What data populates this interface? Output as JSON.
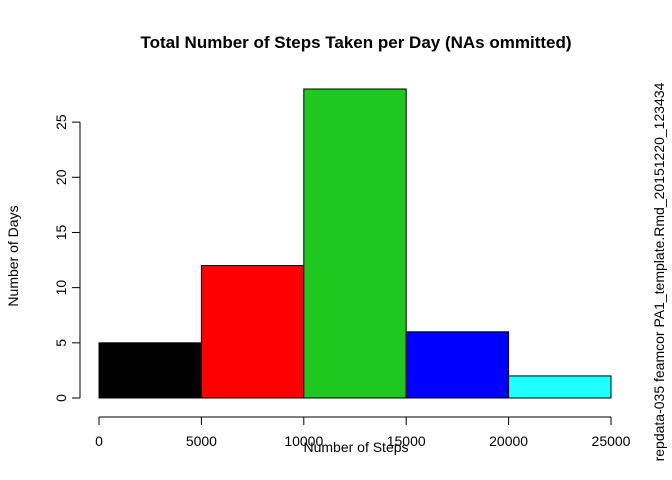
{
  "chart_data": {
    "type": "bar",
    "subtype": "histogram",
    "title": "Total Number of Steps Taken per Day (NAs ommitted)",
    "xlabel": "Number of Steps",
    "ylabel": "Number of Days",
    "side_note": "repdata-035 feamcor PA1_template.Rmd_20151220_123434",
    "bins": [
      {
        "from": 0,
        "to": 5000,
        "value": 5,
        "color": "#000000"
      },
      {
        "from": 5000,
        "to": 10000,
        "value": 12,
        "color": "#ff0000"
      },
      {
        "from": 10000,
        "to": 15000,
        "value": 28,
        "color": "#1ec81e"
      },
      {
        "from": 15000,
        "to": 20000,
        "value": 6,
        "color": "#0000ff"
      },
      {
        "from": 20000,
        "to": 25000,
        "value": 2,
        "color": "#1effff"
      }
    ],
    "xlim": [
      0,
      25000
    ],
    "ylim": [
      0,
      28
    ],
    "xticks": [
      0,
      5000,
      10000,
      15000,
      20000,
      25000
    ],
    "yticks": [
      0,
      5,
      10,
      15,
      20,
      25
    ],
    "grid": false,
    "legend": "none"
  }
}
